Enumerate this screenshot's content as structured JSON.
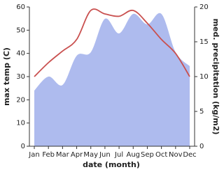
{
  "chart_data": {
    "type": "line-area",
    "x_label": "date (month)",
    "y_label": "max temp (C)",
    "y2_label": "med. precipitation (kg/m2)",
    "categories": [
      "Jan",
      "Feb",
      "Mar",
      "Apr",
      "May",
      "Jun",
      "Jul",
      "Aug",
      "Sep",
      "Oct",
      "Nov",
      "Dec"
    ],
    "series": [
      {
        "name": "max temp",
        "type": "line",
        "color": "#c9504f",
        "values": [
          30,
          36,
          41,
          46,
          58.5,
          57,
          56,
          58.5,
          53,
          46,
          40,
          30
        ]
      },
      {
        "name": "precipitation",
        "type": "area",
        "axis": "y2",
        "color": "#aebbee",
        "values": [
          8,
          10,
          8.8,
          13,
          13.5,
          18.3,
          16.2,
          19,
          17.5,
          19,
          13.5,
          11.5
        ]
      }
    ],
    "ylim": [
      0,
      60
    ],
    "yticks": [
      0,
      10,
      20,
      30,
      40,
      50,
      60
    ],
    "y2lim": [
      0,
      20
    ],
    "y2ticks": [
      0,
      5,
      10,
      15,
      20
    ]
  }
}
